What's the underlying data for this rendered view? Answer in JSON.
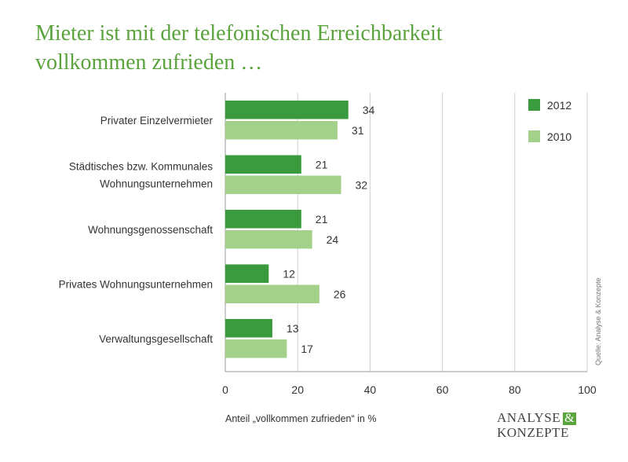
{
  "title": {
    "line1": "Mieter ist mit der telefonischen Erreichbarkeit",
    "line2": "vollkommen zufrieden …"
  },
  "chart_data": {
    "type": "bar",
    "orientation": "horizontal",
    "categories": [
      [
        "Privater Einzelvermieter"
      ],
      [
        "Städtisches bzw. Kommunales",
        "Wohnungsunternehmen"
      ],
      [
        "Wohnungsgenossenschaft"
      ],
      [
        "Privates Wohnungsunternehmen"
      ],
      [
        "Verwaltungsgesellschaft"
      ]
    ],
    "series": [
      {
        "name": "2012",
        "color": "#3a9a3e",
        "values": [
          34,
          21,
          21,
          12,
          13
        ]
      },
      {
        "name": "2010",
        "color": "#a3d18a",
        "values": [
          31,
          32,
          24,
          26,
          17
        ]
      }
    ],
    "xlim": [
      0,
      100
    ],
    "xticks": [
      0,
      20,
      40,
      60,
      80,
      100
    ],
    "xlabel": "Anteil „vollkommen zufrieden“ in %",
    "grid": true,
    "legend_position": "top-right"
  },
  "source_note": "Quelle: Analyse & Konzepte",
  "logo": {
    "line1": "ANALYSE",
    "amp": "&",
    "line2": "KONZEPTE"
  }
}
